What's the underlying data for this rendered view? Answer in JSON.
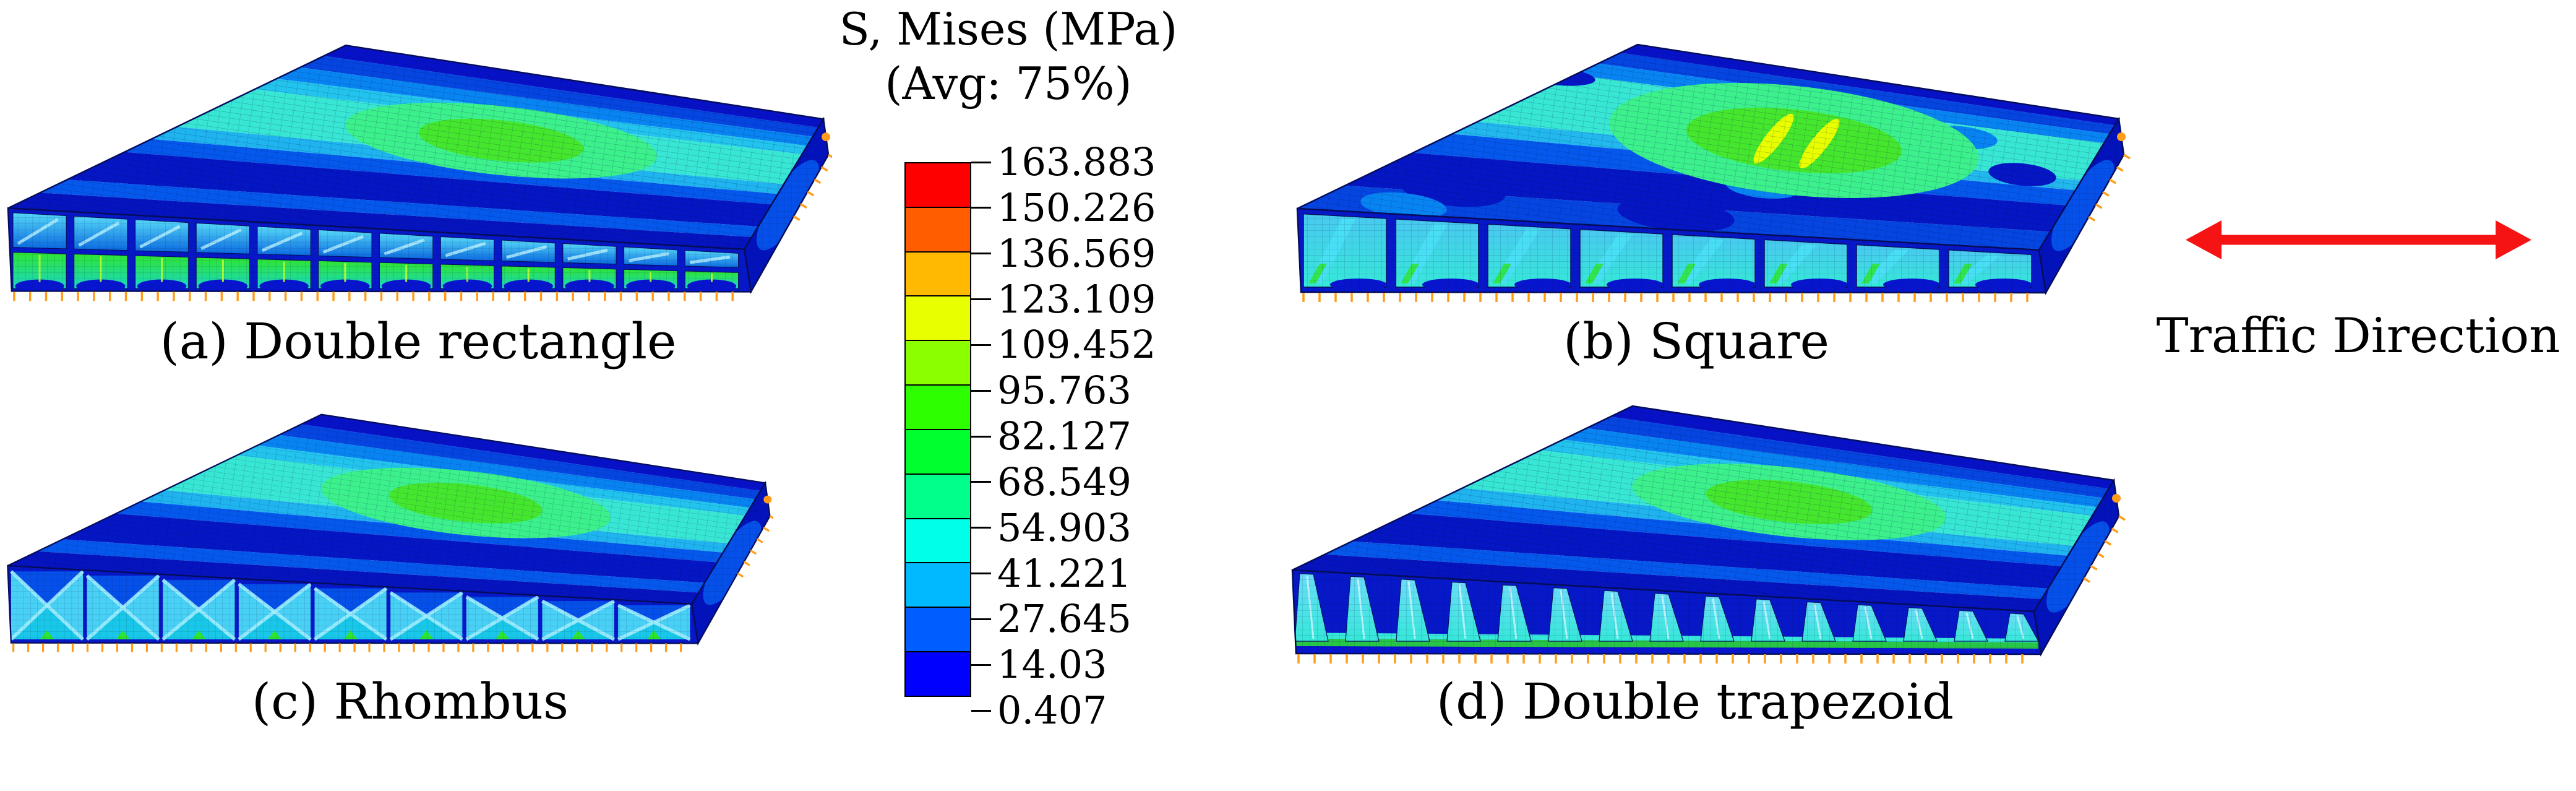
{
  "panels": [
    {
      "id": "a",
      "caption": "(a) Double rectangle",
      "core": "double-rectangle",
      "surface_peak": "green hotspot ~82-110 MPa at mid-span"
    },
    {
      "id": "b",
      "caption": "(b) Square",
      "core": "square",
      "surface_peak": "yellow streaks ~110-123 MPa at mid-span"
    },
    {
      "id": "c",
      "caption": "(c) Rhombus",
      "core": "rhombus",
      "surface_peak": "green hotspot ~82-110 MPa at mid-span"
    },
    {
      "id": "d",
      "caption": "(d) Double trapezoid",
      "core": "double-trapezoid",
      "surface_peak": "green hotspot ~82-110 MPa at mid-span"
    }
  ],
  "legend": {
    "title_line1": "S, Mises (MPa)",
    "title_line2": "(Avg: 75%)",
    "ticks": [
      "163.883",
      "150.226",
      "136.569",
      "123.109",
      "109.452",
      "95.763",
      "82.127",
      "68.549",
      "54.903",
      "41.221",
      "27.645",
      "14.03",
      "0.407"
    ],
    "band_colors_top_to_bottom": [
      "#FF0000",
      "#FF5D00",
      "#FFB900",
      "#E8FF00",
      "#8BFF00",
      "#2EFF00",
      "#00FF2E",
      "#00FF8B",
      "#00FFE8",
      "#00B9FF",
      "#005DFF",
      "#0000FF"
    ]
  },
  "traffic": {
    "label": "Traffic Direction",
    "arrow_color": "#F51313"
  },
  "chart_data": {
    "type": "heatmap",
    "title": "S, Mises (MPa)",
    "subtitle": "(Avg: 75%)",
    "colorbar": {
      "min": 0.407,
      "max": 163.883,
      "tick_values": [
        163.883,
        150.226,
        136.569,
        123.109,
        109.452,
        95.763,
        82.127,
        68.549,
        54.903,
        41.221,
        27.645,
        14.03,
        0.407
      ],
      "colors_top_to_bottom": [
        "#FF0000",
        "#FF5D00",
        "#FFB900",
        "#E8FF00",
        "#8BFF00",
        "#2EFF00",
        "#00FF2E",
        "#00FF8B",
        "#00FFE8",
        "#00B9FF",
        "#005DFF",
        "#0000FF"
      ]
    },
    "subplots": [
      {
        "label": "(a) Double rectangle",
        "description": "Von Mises stress contour of sandwich bridge deck with double-rectangle core: top plate mostly 0-28 MPa (blue) with banded contours and a central green hotspot ~82-110 MPa; exposed core webs ~41-82 MPa (cyan-green); orange boundary-condition arrows along the supported bottom edges."
      },
      {
        "label": "(b) Square",
        "description": "Square core: mottled top-plate contours, strongest central hotspot with local yellow streaks ~110-123 MPa inside a green patch; single row of large square core cells with webs ~41-96 MPa."
      },
      {
        "label": "(c) Rhombus",
        "description": "Rhombus core: banded top-plate contours with small central green hotspot ~82-110 MPa; X-shaped (diamond) core webs mostly 27-82 MPa (blue-cyan with green accents)."
      },
      {
        "label": "(d) Double trapezoid",
        "description": "Double-trapezoid (corrugated) core: banded top-plate contours with central green hotspot ~82-110 MPa; zig-zag trapezoidal webs ~41-82 MPa with green lower chord."
      }
    ],
    "annotations": [
      "Traffic Direction"
    ]
  }
}
